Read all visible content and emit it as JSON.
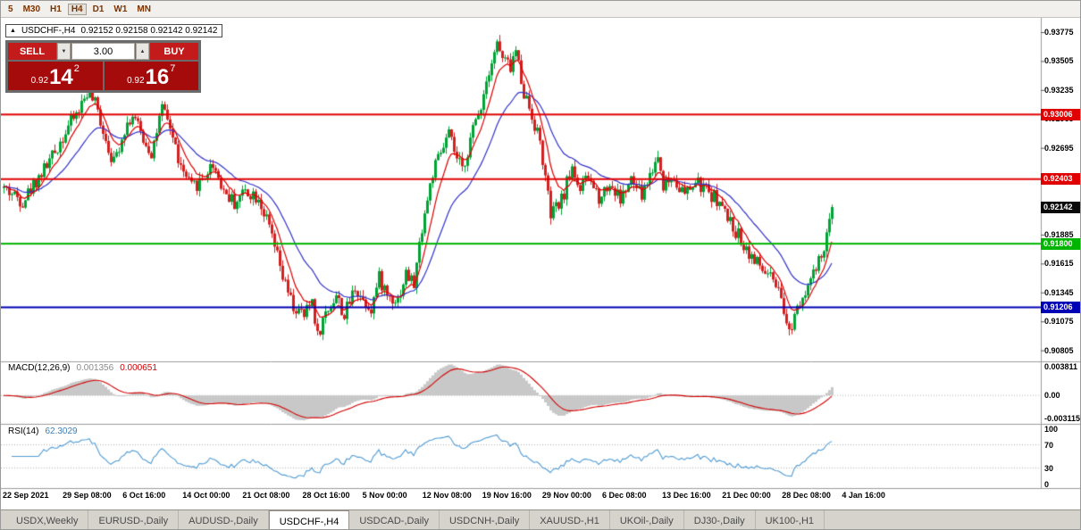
{
  "toolbar": {
    "periods": [
      "5",
      "M30",
      "H1",
      "H4",
      "D1",
      "W1",
      "MN"
    ],
    "active": "H4"
  },
  "title": {
    "expand_icon": "▲",
    "symbol_period": "USDCHF-,H4",
    "ohlc": "0.92152 0.92158 0.92142 0.92142"
  },
  "trade_panel": {
    "sell_label": "SELL",
    "buy_label": "BUY",
    "volume": "3.00",
    "dropdown_icon": "▼",
    "up_icon": "▲",
    "sell_price": {
      "prefix": "0.92",
      "big": "14",
      "sup": "2"
    },
    "buy_price": {
      "prefix": "0.92",
      "big": "16",
      "sup": "7"
    }
  },
  "price_axis": {
    "ticks": [
      "0.93775",
      "0.93505",
      "0.93235",
      "0.92965",
      "0.92695",
      "0.92425",
      "0.92155",
      "0.91885",
      "0.91615",
      "0.91345",
      "0.91075",
      "0.90805"
    ],
    "current": "0.92142",
    "current_bg": "#0a0a0a"
  },
  "time_axis": {
    "labels": [
      "22 Sep 2021",
      "29 Sep 08:00",
      "6 Oct 16:00",
      "14 Oct 00:00",
      "21 Oct 08:00",
      "28 Oct 16:00",
      "5 Nov 00:00",
      "12 Nov 08:00",
      "19 Nov 16:00",
      "29 Nov 00:00",
      "6 Dec 08:00",
      "13 Dec 16:00",
      "21 Dec 00:00",
      "28 Dec 08:00",
      "4 Jan 16:00"
    ]
  },
  "indicators": {
    "macd": {
      "label": "MACD(12,26,9)",
      "value_main": "0.001356",
      "value_signal": "0.000651",
      "axis": [
        {
          "text": "0.003811",
          "v": 0.003811
        },
        {
          "text": "0.00",
          "v": 0
        },
        {
          "text": "-0.003115",
          "v": -0.003115
        }
      ],
      "scale": {
        "max": 0.003811,
        "min": -0.003115
      },
      "hist_color": "#c8c8c8",
      "signal_color": "#d40000"
    },
    "rsi": {
      "label": "RSI(14)",
      "value": "62.3029",
      "axis": [
        {
          "text": "100",
          "v": 100
        },
        {
          "text": "70",
          "v": 70
        },
        {
          "text": "30",
          "v": 30
        },
        {
          "text": "0",
          "v": 0
        }
      ],
      "levels": [
        70,
        30
      ],
      "line_color": "#4f9bd5"
    }
  },
  "tabs": {
    "items": [
      "USDX,Weekly",
      "EURUSD-,Daily",
      "AUDUSD-,Daily",
      "USDCHF-,H4",
      "USDCAD-,Daily",
      "USDCNH-,Daily",
      "XAUUSD-,H1",
      "UKOil-,Daily",
      "DJ30-,Daily",
      "UK100-,H1"
    ],
    "active_index": 3
  },
  "chart_data": {
    "type": "candlestick",
    "symbol": "USDCHF-",
    "timeframe": "H4",
    "bars": 310,
    "seed": 42,
    "noise_amp": 0.0007,
    "wick_amp": 0.0006,
    "last_close": 0.92142,
    "y_range": [
      0.9076,
      0.939
    ],
    "up_color": "#00a335",
    "down_color": "#d32020",
    "ma_fast": {
      "period": 8,
      "color": "#e00000"
    },
    "ma_slow": {
      "period": 24,
      "color": "#3333cc"
    },
    "hlines": [
      {
        "price": 0.93006,
        "label": "0.93006",
        "color": "#e00000"
      },
      {
        "price": 0.92403,
        "label": "0.92403",
        "color": "#e00000"
      },
      {
        "price": 0.918,
        "label": "0.91800",
        "color": "#00b400"
      },
      {
        "price": 0.91206,
        "label": "0.91206",
        "color": "#0000b4"
      }
    ],
    "price_anchors": [
      [
        0,
        0.9232
      ],
      [
        7,
        0.922
      ],
      [
        12,
        0.9239
      ],
      [
        18,
        0.9261
      ],
      [
        24,
        0.929
      ],
      [
        28,
        0.9305
      ],
      [
        31,
        0.9322
      ],
      [
        34,
        0.931
      ],
      [
        36,
        0.9295
      ],
      [
        39,
        0.927
      ],
      [
        41,
        0.9256
      ],
      [
        45,
        0.9288
      ],
      [
        48,
        0.93
      ],
      [
        52,
        0.9278
      ],
      [
        55,
        0.9265
      ],
      [
        59,
        0.9305
      ],
      [
        62,
        0.9289
      ],
      [
        66,
        0.925
      ],
      [
        70,
        0.9232
      ],
      [
        74,
        0.924
      ],
      [
        78,
        0.9255
      ],
      [
        82,
        0.923
      ],
      [
        86,
        0.9218
      ],
      [
        90,
        0.923
      ],
      [
        95,
        0.9224
      ],
      [
        100,
        0.9186
      ],
      [
        104,
        0.9148
      ],
      [
        108,
        0.912
      ],
      [
        112,
        0.9112
      ],
      [
        115,
        0.9128
      ],
      [
        117,
        0.9094
      ],
      [
        120,
        0.9115
      ],
      [
        124,
        0.9132
      ],
      [
        127,
        0.9112
      ],
      [
        131,
        0.914
      ],
      [
        134,
        0.9128
      ],
      [
        137,
        0.912
      ],
      [
        140,
        0.9148
      ],
      [
        143,
        0.9132
      ],
      [
        147,
        0.9128
      ],
      [
        150,
        0.9152
      ],
      [
        153,
        0.9142
      ],
      [
        156,
        0.9196
      ],
      [
        160,
        0.9246
      ],
      [
        164,
        0.927
      ],
      [
        166,
        0.9282
      ],
      [
        169,
        0.9258
      ],
      [
        171,
        0.9248
      ],
      [
        175,
        0.9286
      ],
      [
        178,
        0.931
      ],
      [
        181,
        0.9344
      ],
      [
        184,
        0.9367
      ],
      [
        186,
        0.9352
      ],
      [
        189,
        0.9345
      ],
      [
        191,
        0.936
      ],
      [
        194,
        0.9322
      ],
      [
        197,
        0.93
      ],
      [
        200,
        0.9275
      ],
      [
        204,
        0.9206
      ],
      [
        208,
        0.922
      ],
      [
        212,
        0.9252
      ],
      [
        215,
        0.923
      ],
      [
        218,
        0.9242
      ],
      [
        222,
        0.9224
      ],
      [
        226,
        0.9236
      ],
      [
        230,
        0.9222
      ],
      [
        234,
        0.9238
      ],
      [
        238,
        0.9225
      ],
      [
        241,
        0.9244
      ],
      [
        244,
        0.9262
      ],
      [
        246,
        0.9236
      ],
      [
        250,
        0.9242
      ],
      [
        254,
        0.9225
      ],
      [
        258,
        0.9237
      ],
      [
        262,
        0.923
      ],
      [
        266,
        0.9222
      ],
      [
        270,
        0.9203
      ],
      [
        274,
        0.9188
      ],
      [
        278,
        0.9172
      ],
      [
        282,
        0.9158
      ],
      [
        286,
        0.9148
      ],
      [
        289,
        0.9132
      ],
      [
        293,
        0.9097
      ],
      [
        296,
        0.9124
      ],
      [
        300,
        0.9142
      ],
      [
        303,
        0.9155
      ],
      [
        306,
        0.9175
      ],
      [
        308,
        0.9198
      ],
      [
        309,
        0.92142
      ]
    ]
  }
}
